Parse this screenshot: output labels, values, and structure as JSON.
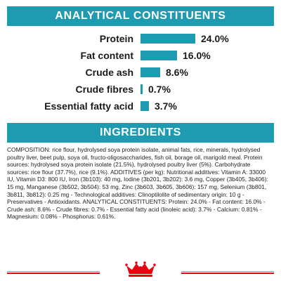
{
  "accent": "#1e9bb0",
  "bar_color": "#1e9bb0",
  "logo_color": "#e30613",
  "analytical": {
    "title": "ANALYTICAL CONSTITUENTS",
    "rows": [
      {
        "label": "Protein",
        "value": "24.0%",
        "amount": 24.0
      },
      {
        "label": "Fat content",
        "value": "16.0%",
        "amount": 16.0
      },
      {
        "label": "Crude ash",
        "value": "8.6%",
        "amount": 8.6
      },
      {
        "label": "Crude fibres",
        "value": "0.7%",
        "amount": 0.7
      },
      {
        "label": "Essential fatty acid",
        "value": "3.7%",
        "amount": 3.7
      }
    ]
  },
  "ingredients": {
    "title": "INGREDIENTS",
    "text": "COMPOSITION: rice flour, hydrolysed soya protein isolate, animal fats, rice, minerals, hydrolysed poultry liver, beet pulp, soya oil, fructo-oligosaccharides, fish oil, borage oil, marigold meal. Protein sources: hydrolysed soya protein isolate (21.5%), hydrolysed poultry liver (5%). Carbohydrate sources: rice flour (37.7%), rice (9.1%). ADDITIVES (per kg): Nutritional additives: Vitamin A: 33000 IU, Vitamin D3: 800 IU, Iron (3b103): 40 mg, Iodine (3b201, 3b202): 3.6 mg, Copper (3b405, 3b406): 15 mg, Manganese (3b502, 3b504): 53 mg, Zinc (3b603, 3b605, 3b606): 157 mg, Selenium (3b801, 3b811, 3b812): 0.25 mg - Technological additives: Clinoptilolite of sedimentary origin: 10 g - Preservatives - Antioxidants. ANALYTICAL CONSTITUENTS: Protein: 24.0% - Fat content: 16.0% - Crude ash: 8.6% - Crude fibres: 0.7% - Essential fatty acid (linoleic acid): 3.7% - Calcium: 0.81% - Magnesium: 0.08% - Phosphorus: 0.61%."
  }
}
